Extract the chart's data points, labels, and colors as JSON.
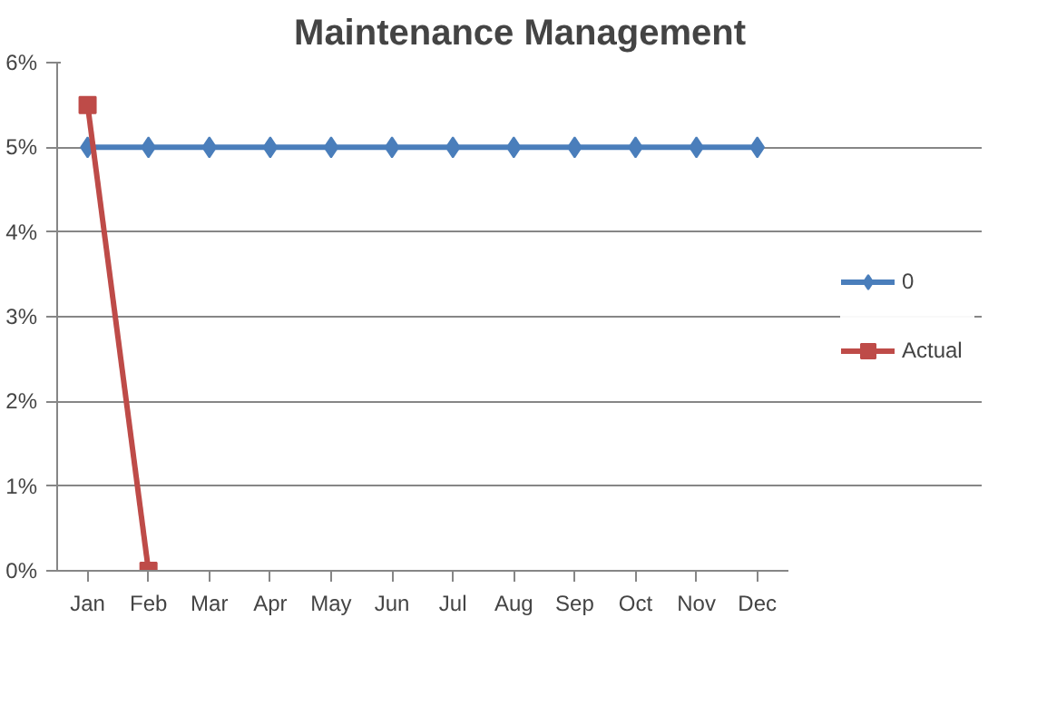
{
  "chart_data": {
    "type": "line",
    "title": "Maintenance Management",
    "categories": [
      "Jan",
      "Feb",
      "Mar",
      "Apr",
      "May",
      "Jun",
      "Jul",
      "Aug",
      "Sep",
      "Oct",
      "Nov",
      "Dec"
    ],
    "series": [
      {
        "name": "0",
        "color": "#4a7ebb",
        "marker": "diamond",
        "values": [
          5,
          5,
          5,
          5,
          5,
          5,
          5,
          5,
          5,
          5,
          5,
          5
        ]
      },
      {
        "name": "Actual",
        "color": "#be4b48",
        "marker": "square",
        "values": [
          5.5,
          0,
          null,
          null,
          null,
          null,
          null,
          null,
          null,
          null,
          null,
          null
        ]
      }
    ],
    "ylim": [
      0,
      6
    ],
    "yticks": [
      {
        "value": 0,
        "label": "0%"
      },
      {
        "value": 1,
        "label": "1%"
      },
      {
        "value": 2,
        "label": "2%"
      },
      {
        "value": 3,
        "label": "3%"
      },
      {
        "value": 4,
        "label": "4%"
      },
      {
        "value": 5,
        "label": "5%"
      },
      {
        "value": 6,
        "label": "6%"
      }
    ],
    "grid": "y",
    "legend": "right"
  }
}
